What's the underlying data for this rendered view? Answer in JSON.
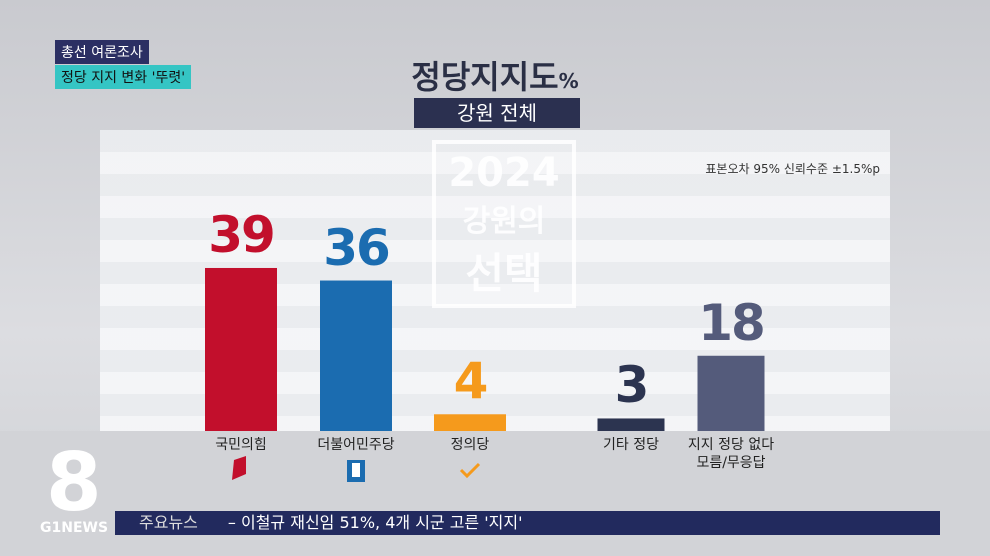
{
  "header": {
    "tag": "총선 여론조사",
    "headline": "정당 지지 변화 '뚜렷'"
  },
  "chart_data": {
    "type": "bar",
    "title": "정당지지도",
    "unit": "%",
    "subtitle": "강원 전체",
    "note": "표본오차 95% 신뢰수준 ±1.5%p",
    "categories": [
      "국민의힘",
      "더불어민주당",
      "정의당",
      "기타 정당",
      "지지 정당 없다\n모름/무응답"
    ],
    "values": [
      39,
      36,
      4,
      3,
      18
    ],
    "colors": [
      "#c20f2c",
      "#1b6cb0",
      "#f59a1c",
      "#2c3450",
      "#545b7b"
    ]
  },
  "watermark": {
    "year": "2024",
    "line1": "강원의",
    "line2": "선택"
  },
  "logo": {
    "number": "8",
    "brand": "G1NEWS"
  },
  "ticker": {
    "label": "주요뉴스",
    "text": "– 이철규 재신임 51%, 4개 시군 고른 '지지'"
  }
}
